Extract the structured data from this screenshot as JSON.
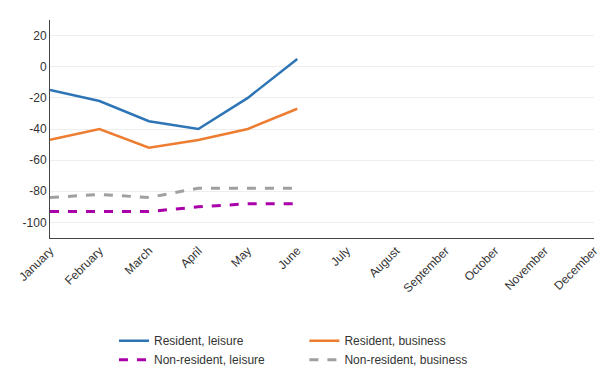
{
  "chart_data": {
    "type": "line",
    "categories": [
      "January",
      "February",
      "March",
      "April",
      "May",
      "June",
      "July",
      "August",
      "September",
      "October",
      "November",
      "December"
    ],
    "series": [
      {
        "name": "Resident, leisure",
        "color": "#2E75B6",
        "line_style": "solid",
        "values": [
          -15,
          -22,
          -35,
          -40,
          -20,
          5,
          null,
          null,
          null,
          null,
          null,
          null
        ]
      },
      {
        "name": "Resident, business",
        "color": "#ED7D31",
        "line_style": "solid",
        "values": [
          -47,
          -40,
          -52,
          -47,
          -40,
          -27,
          null,
          null,
          null,
          null,
          null,
          null
        ]
      },
      {
        "name": "Non-resident, leisure",
        "color": "#AA00AA",
        "line_style": "dashed",
        "values": [
          -93,
          -93,
          -93,
          -90,
          -88,
          -88,
          null,
          null,
          null,
          null,
          null,
          null
        ]
      },
      {
        "name": "Non-resident, business",
        "color": "#A0A0A0",
        "line_style": "dashed",
        "values": [
          -84,
          -82,
          -84,
          -78,
          -78,
          -78,
          null,
          null,
          null,
          null,
          null,
          null
        ]
      }
    ],
    "ylim": [
      -110,
      30
    ],
    "yticks": [
      -100,
      -80,
      -60,
      -40,
      -20,
      0,
      20
    ],
    "grid": true,
    "legend": "bottom"
  }
}
